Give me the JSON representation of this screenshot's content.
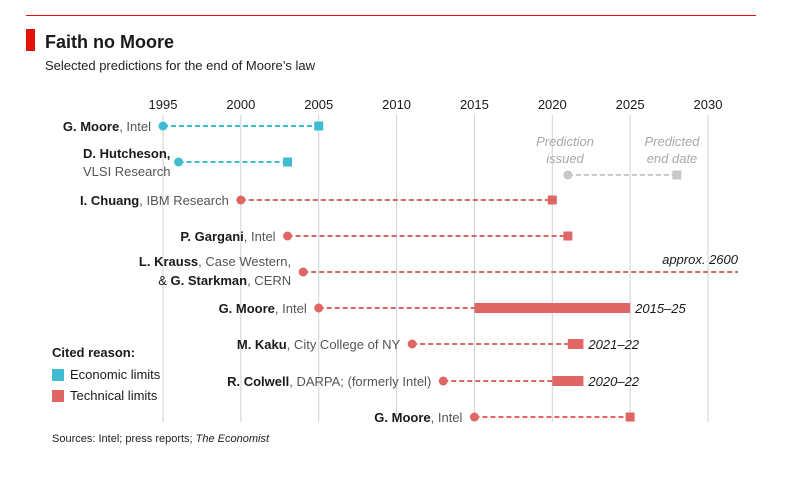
{
  "title": "Faith no Moore",
  "subtitle": "Selected predictions for the end of Moore’s law",
  "legend": {
    "title": "Cited reason:",
    "items": [
      {
        "label": "Economic limits",
        "color": "#3ebcd2"
      },
      {
        "label": "Technical limits",
        "color": "#e06666"
      }
    ]
  },
  "key": {
    "issued": [
      "Prediction",
      "issued"
    ],
    "end": [
      "Predicted",
      "end date"
    ],
    "issued_year": 2021,
    "end_year": 2028,
    "color": "#c8c8c8"
  },
  "source": {
    "prefix": "Sources: Intel; press reports; ",
    "italic": "The Economist"
  },
  "chart_data": {
    "type": "range",
    "title": "Faith no Moore",
    "xlim": [
      1995,
      2030
    ],
    "xticks": [
      1995,
      2000,
      2005,
      2010,
      2015,
      2020,
      2025,
      2030
    ],
    "colors": {
      "economic": "#3ebcd2",
      "technical": "#e06666"
    },
    "predictions": [
      {
        "name": "G. Moore",
        "affil": ", Intel",
        "lines": 1,
        "reason": "economic",
        "issued": 1995,
        "end": 2005
      },
      {
        "name": "D. Hutcheson,",
        "affil_line2": "VLSI Research",
        "lines": 2,
        "reason": "economic",
        "issued": 1996,
        "end": 2003
      },
      {
        "name": "I. Chuang",
        "affil": ", IBM Research",
        "lines": 1,
        "reason": "technical",
        "issued": 2000,
        "end": 2020
      },
      {
        "name": "P. Gargani",
        "affil": ", Intel",
        "lines": 1,
        "reason": "technical",
        "issued": 2003,
        "end": 2021
      },
      {
        "name": "L. Krauss",
        "affil": ", Case Western,",
        "prefix2": "& ",
        "name2": "G. Starkman",
        "affil2": ", CERN",
        "lines": 2,
        "reason": "technical",
        "issued": 2004,
        "end": 2600,
        "end_label": "approx. 2600"
      },
      {
        "name": "G. Moore",
        "affil": ", Intel",
        "lines": 1,
        "reason": "technical",
        "issued": 2005,
        "end": [
          2015,
          2025
        ],
        "end_label": "2015–25"
      },
      {
        "name": "M. Kaku",
        "affil": ", City College of NY",
        "lines": 1,
        "reason": "technical",
        "issued": 2011,
        "end": [
          2021,
          2022
        ],
        "end_label": "2021–22"
      },
      {
        "name": "R. Colwell",
        "affil": ", DARPA; (formerly Intel)",
        "lines": 1,
        "reason": "technical",
        "issued": 2013,
        "end": [
          2020,
          2022
        ],
        "end_label": "2020–22"
      },
      {
        "name": "G. Moore",
        "affil": ", Intel",
        "lines": 1,
        "reason": "technical",
        "issued": 2015,
        "end": 2025
      }
    ]
  }
}
